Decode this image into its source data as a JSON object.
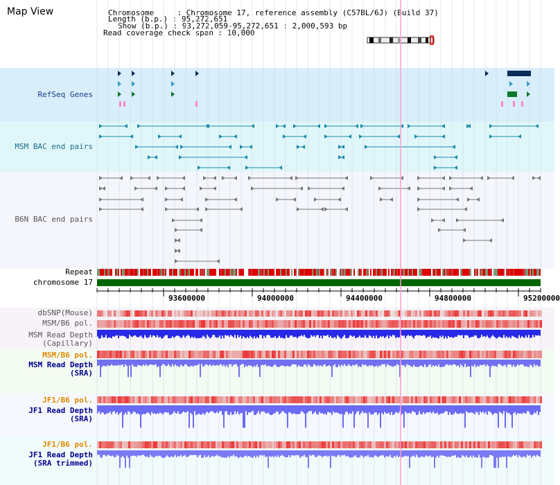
{
  "title": "Map View",
  "info": {
    "chromosome": "Chromosome     : Chromosome 17, reference assembly (C57BL/6J) (Build 37)",
    "length": "Length (b.p.) : 95,272,651",
    "show": "Show (b.p.) : 93,272,059-95,272,651 : 2,000,593 bp",
    "coverage": "Read coverage check span : 10,000"
  },
  "tracks": {
    "refseq": "RefSeq Genes",
    "msm_bac": "MSM BAC end pairs",
    "b6n_bac": "B6N BAC end pairs",
    "repeat": "Repeat",
    "chromosome": "chromosome 17",
    "dbsnp": "dbSNP(Mouse)",
    "msm_b6_pol_1": "MSM/B6 pol.",
    "msm_depth_cap": "MSM Read Depth\n(Capillary)",
    "msm_b6_pol_2": "MSM/B6 pol.",
    "msm_depth_sra": "MSM Read Depth\n(SRA)",
    "jf1_b6_pol_1": "JF1/B6 pol.",
    "jf1_depth_sra": "JF1 Read Depth\n(SRA)",
    "jf1_b6_pol_2": "JF1/B6 pol.",
    "jf1_depth_trim": "JF1 Read Depth\n(SRA trimmed)"
  },
  "axis": {
    "ticks": [
      "93600000",
      "94000000",
      "94400000",
      "94800000",
      "95200000"
    ]
  },
  "colors": {
    "refseq_bg": "#d8eefa",
    "msm_bac_bg": "#e0f7fa",
    "repeat_red": "#dd0000",
    "chromosome_green": "#006400",
    "pol_red": "#e04040",
    "depth_blue": "#3030e0",
    "depth_light_blue": "#7878f0"
  }
}
